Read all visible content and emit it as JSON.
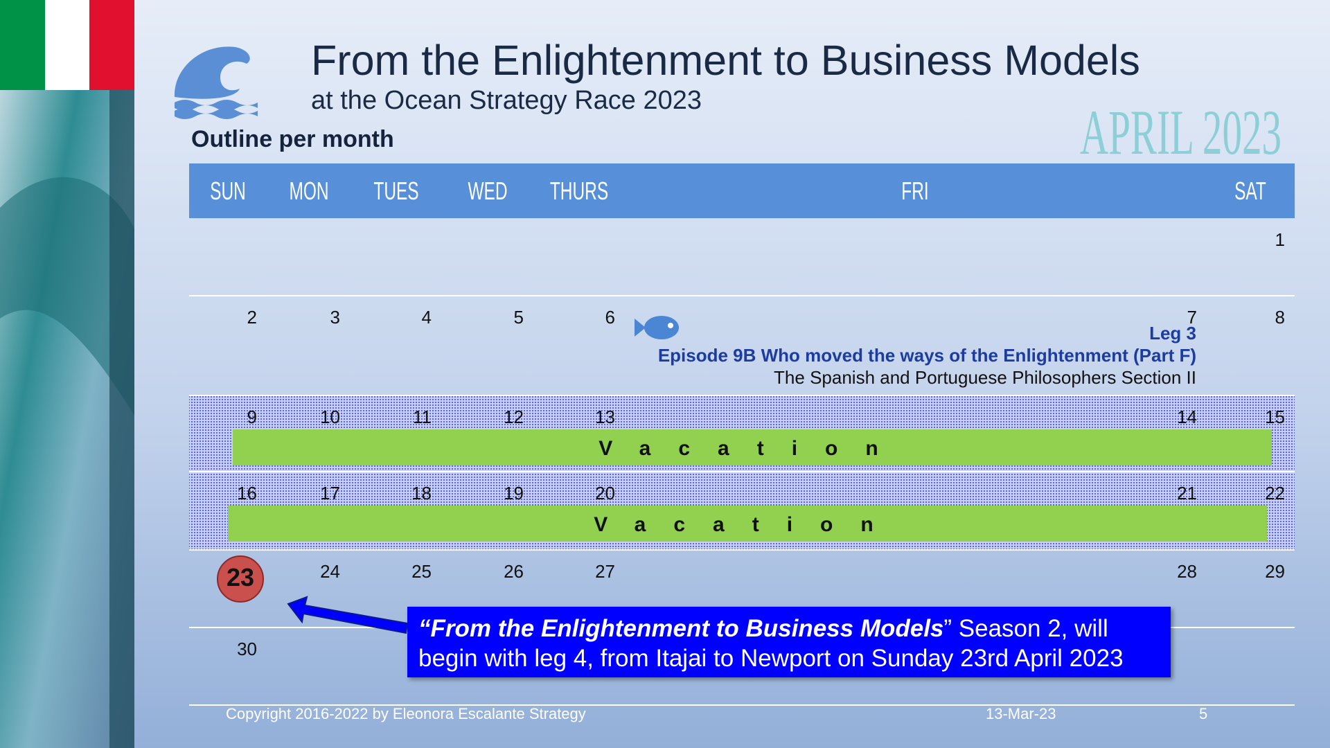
{
  "header": {
    "title": "From the Enlightenment to Business Models",
    "subtitle": "at the Ocean Strategy Race 2023",
    "section": "Outline per month",
    "month": "APRIL 2023"
  },
  "calendar": {
    "days": [
      "SUN",
      "MON",
      "TUES",
      "WED",
      "THURS",
      "FRI",
      "SAT"
    ],
    "today": 23,
    "weeks": [
      {
        "dates": [
          null,
          null,
          null,
          null,
          null,
          null,
          1
        ]
      },
      {
        "dates": [
          2,
          3,
          4,
          5,
          6,
          7,
          8
        ],
        "event": {
          "leg": "Leg 3",
          "episode": "Episode 9B Who moved the ways of the Enlightenment (Part F)",
          "section": "The Spanish and Portuguese Philosophers Section II"
        }
      },
      {
        "dates": [
          9,
          10,
          11,
          12,
          13,
          14,
          15
        ],
        "vacation": "Vacation"
      },
      {
        "dates": [
          16,
          17,
          18,
          19,
          20,
          21,
          22
        ],
        "vacation": "Vacation"
      },
      {
        "dates": [
          23,
          24,
          25,
          26,
          27,
          28,
          29
        ]
      },
      {
        "dates": [
          30
        ]
      }
    ]
  },
  "callout": {
    "emphasis": "“From the Enlightenment to Business Models",
    "text": "” Season 2, will begin with leg 4, from Itajai to Newport on Sunday 23rd April 2023"
  },
  "footer": {
    "copyright": "Copyright 2016-2022 by Eleonora Escalante Strategy",
    "date": "13-Mar-23",
    "page": 5
  }
}
